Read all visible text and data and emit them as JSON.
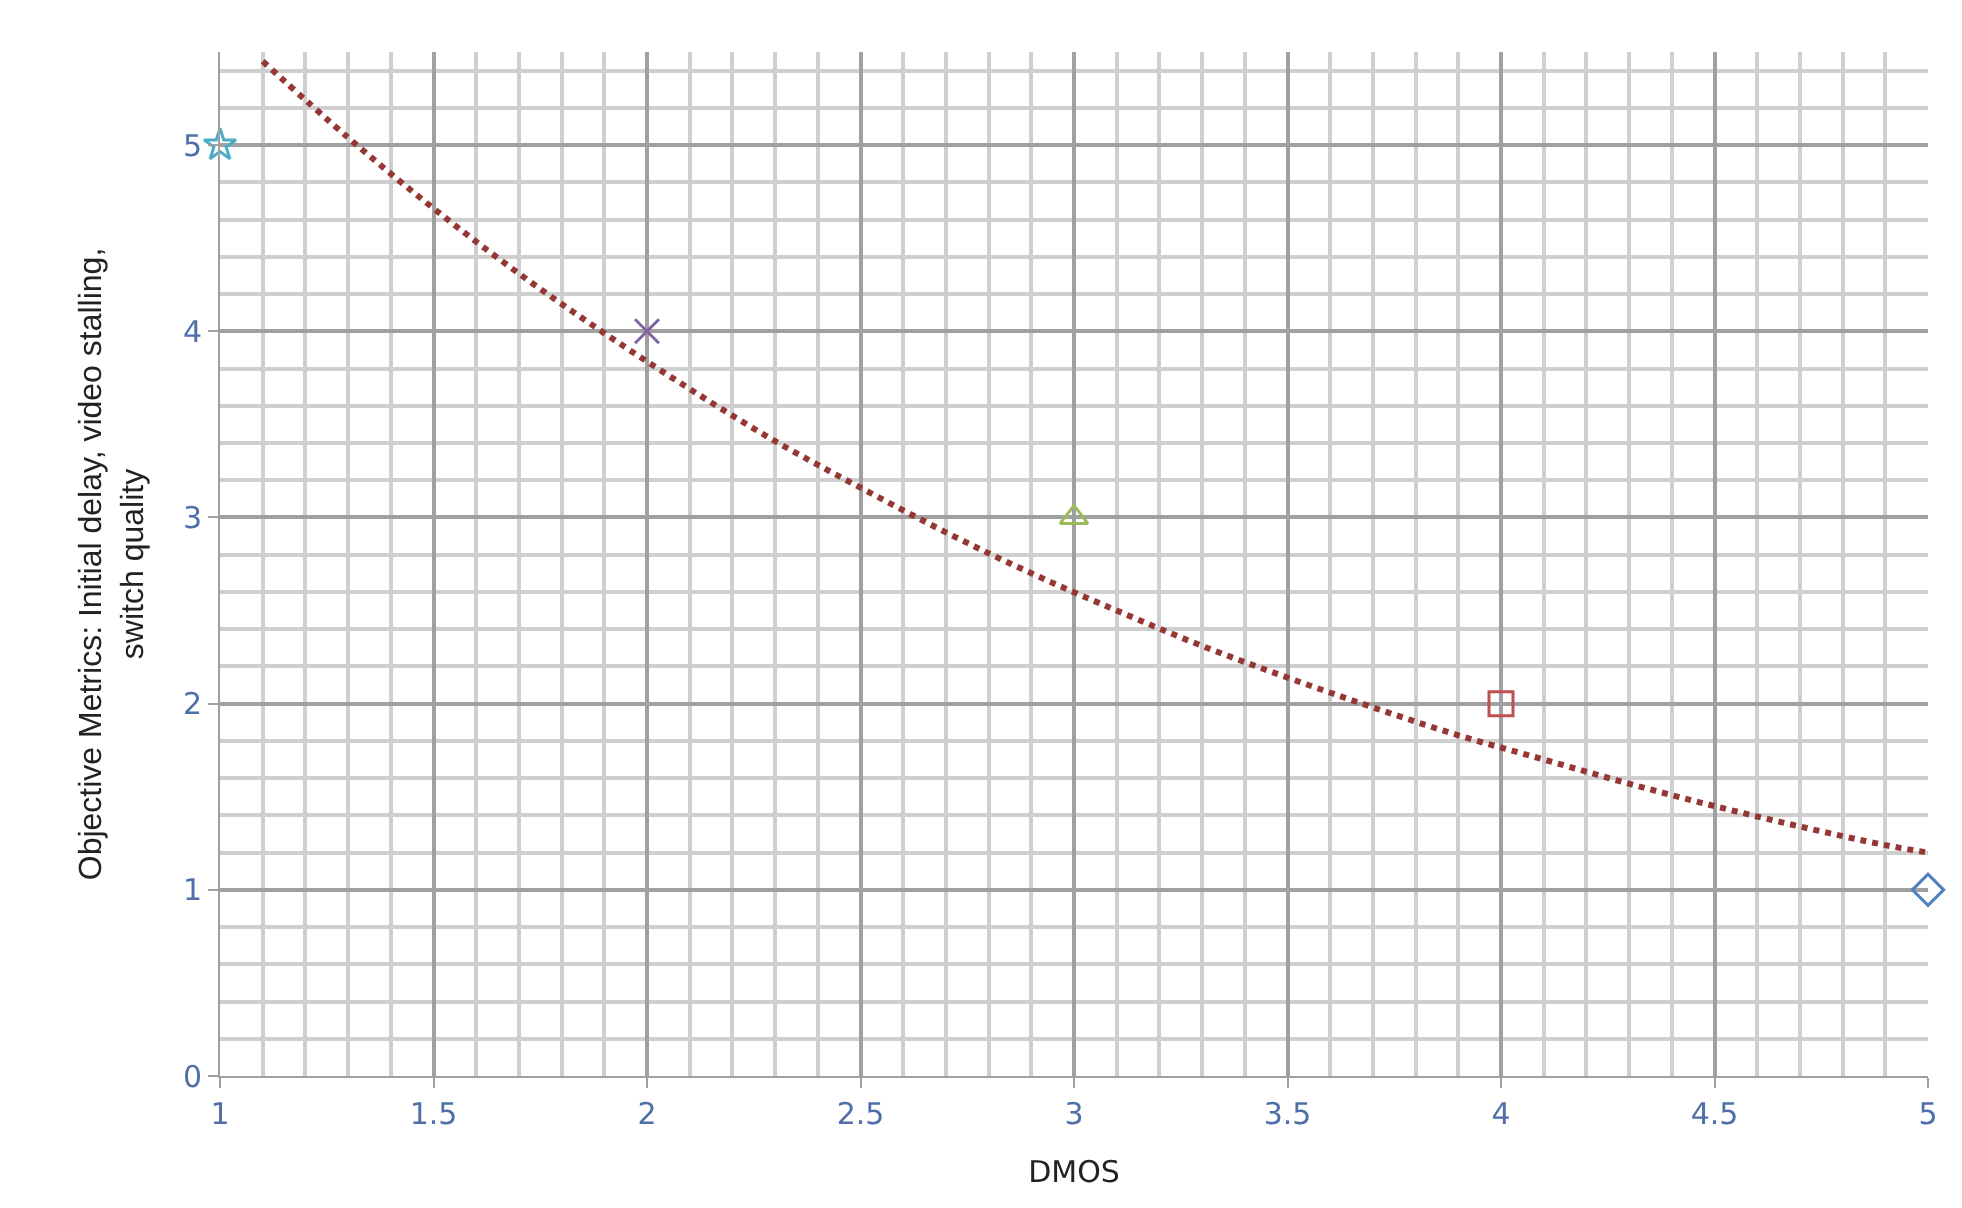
{
  "chart_data": {
    "type": "scatter",
    "xlabel": "DMOS",
    "ylabel": "Objective Metrics: Initial delay, video stalling,\nswitch quality",
    "series": [
      {
        "marker": "star",
        "color": "#4bacc6",
        "x": [
          1
        ],
        "values": [
          5
        ]
      },
      {
        "marker": "cross",
        "color": "#8064a2",
        "x": [
          2
        ],
        "values": [
          4
        ]
      },
      {
        "marker": "triangle",
        "color": "#9bbb59",
        "x": [
          3
        ],
        "values": [
          3
        ]
      },
      {
        "marker": "square",
        "color": "#c0504d",
        "x": [
          4
        ],
        "values": [
          2
        ]
      },
      {
        "marker": "diamond",
        "color": "#4f81bd",
        "x": [
          5
        ],
        "values": [
          1
        ]
      },
      {
        "type": "line",
        "line_style": "dotted",
        "marker": "none",
        "color": "#953735",
        "x": [
          1.1,
          1.3,
          1.5,
          1.7,
          1.9,
          2.1,
          2.3,
          2.5,
          2.7,
          2.9,
          3.1,
          3.3,
          3.5,
          3.7,
          3.9,
          4.1,
          4.3,
          4.5,
          4.7,
          4.9,
          5.0
        ],
        "values": [
          5.45,
          5.04,
          4.66,
          4.31,
          3.99,
          3.69,
          3.41,
          3.16,
          2.92,
          2.7,
          2.5,
          2.31,
          2.14,
          1.98,
          1.83,
          1.7,
          1.57,
          1.45,
          1.34,
          1.24,
          1.2
        ]
      }
    ],
    "xlim": [
      1,
      5
    ],
    "xticks": [
      1,
      1.5,
      2,
      2.5,
      3,
      3.5,
      4,
      4.5,
      5
    ],
    "ylim": [
      0,
      5.5
    ],
    "yticks": [
      0,
      1,
      2,
      3,
      4,
      5
    ],
    "grid": true
  }
}
